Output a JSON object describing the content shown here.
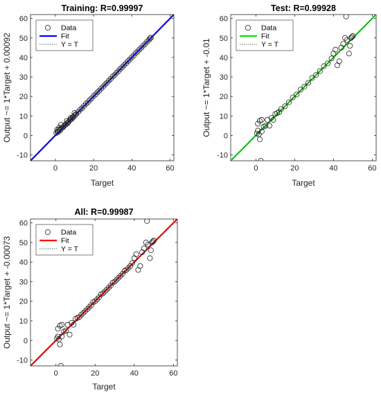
{
  "chart_data": [
    {
      "type": "scatter",
      "title": "Training: R=0.99997",
      "xlabel": "Target",
      "ylabel": "Output ~= 1*Target + 0.00092",
      "xlim": [
        -13,
        62
      ],
      "ylim": [
        -13,
        62
      ],
      "xticks": [
        0,
        20,
        40,
        60
      ],
      "yticks": [
        -10,
        0,
        10,
        20,
        30,
        40,
        50,
        60
      ],
      "fit_color": "#0000ff",
      "legend": [
        "Data",
        "Fit",
        "Y = T"
      ],
      "legend_position": "top-left",
      "grid": false,
      "points": [
        [
          0.5,
          1.2
        ],
        [
          1,
          2
        ],
        [
          1.5,
          1.8
        ],
        [
          2,
          3
        ],
        [
          2.5,
          2.6
        ],
        [
          3,
          3.4
        ],
        [
          3.5,
          4
        ],
        [
          4,
          4.2
        ],
        [
          4.5,
          4.8
        ],
        [
          5,
          5.3
        ],
        [
          5.5,
          5.6
        ],
        [
          6,
          6.2
        ],
        [
          6.5,
          6.4
        ],
        [
          7,
          7.1
        ],
        [
          7.5,
          7.8
        ],
        [
          8,
          8.2
        ],
        [
          8.5,
          8.4
        ],
        [
          9,
          9.3
        ],
        [
          9.5,
          9.4
        ],
        [
          10,
          10.2
        ],
        [
          10.5,
          10.6
        ],
        [
          11,
          11
        ],
        [
          2,
          4
        ],
        [
          3,
          5.5
        ],
        [
          1,
          3
        ],
        [
          8,
          9
        ],
        [
          6,
          7.5
        ],
        [
          10,
          11.5
        ],
        [
          12,
          12.1
        ],
        [
          13,
          13.2
        ],
        [
          14,
          14
        ],
        [
          15,
          15.1
        ],
        [
          16,
          16.2
        ],
        [
          17,
          17
        ],
        [
          18,
          18.1
        ],
        [
          19,
          19
        ],
        [
          20,
          20.2
        ],
        [
          21,
          21
        ],
        [
          22,
          22.1
        ],
        [
          23,
          23
        ],
        [
          24,
          24.1
        ],
        [
          25,
          25
        ],
        [
          26,
          26.1
        ],
        [
          27,
          27
        ],
        [
          28,
          28.1
        ],
        [
          29,
          29
        ],
        [
          30,
          30.2
        ],
        [
          31,
          31
        ],
        [
          32,
          32.1
        ],
        [
          33,
          33
        ],
        [
          34,
          34.1
        ],
        [
          35,
          35
        ],
        [
          36,
          36.1
        ],
        [
          37,
          37
        ],
        [
          38,
          38.1
        ],
        [
          39,
          39
        ],
        [
          40,
          40.1
        ],
        [
          41,
          41
        ],
        [
          42,
          42.2
        ],
        [
          43,
          43
        ],
        [
          44,
          44.1
        ],
        [
          45,
          45
        ],
        [
          46,
          46.1
        ],
        [
          47,
          47
        ],
        [
          48,
          48.1
        ],
        [
          49,
          49
        ],
        [
          49.5,
          49.8
        ],
        [
          50,
          50.1
        ]
      ]
    },
    {
      "type": "scatter",
      "title": "Test: R=0.99928",
      "xlabel": "Target",
      "ylabel": "Output ~= 1*Target + -0.01",
      "xlim": [
        -13,
        62
      ],
      "ylim": [
        -13,
        62
      ],
      "xticks": [
        0,
        20,
        40,
        60
      ],
      "yticks": [
        -10,
        0,
        10,
        20,
        30,
        40,
        50,
        60
      ],
      "fit_color": "#00e600",
      "legend": [
        "Data",
        "Fit",
        "Y = T"
      ],
      "legend_position": "top-left",
      "grid": false,
      "points": [
        [
          0.5,
          1
        ],
        [
          1,
          2.5
        ],
        [
          1.5,
          0.5
        ],
        [
          2,
          -2
        ],
        [
          2,
          7.5
        ],
        [
          2.5,
          -13
        ],
        [
          3,
          8
        ],
        [
          1,
          6
        ],
        [
          3,
          2
        ],
        [
          4,
          4.5
        ],
        [
          5,
          5
        ],
        [
          6,
          8
        ],
        [
          7,
          5
        ],
        [
          8,
          9
        ],
        [
          9,
          8
        ],
        [
          10,
          11
        ],
        [
          11,
          11.5
        ],
        [
          12,
          12
        ],
        [
          13,
          13.5
        ],
        [
          15,
          15
        ],
        [
          17,
          17
        ],
        [
          19,
          19.5
        ],
        [
          21,
          21
        ],
        [
          23,
          23.5
        ],
        [
          25,
          25
        ],
        [
          27,
          27
        ],
        [
          29,
          29.5
        ],
        [
          31,
          31
        ],
        [
          33,
          33
        ],
        [
          35,
          35.5
        ],
        [
          37,
          37
        ],
        [
          39,
          39.5
        ],
        [
          40,
          42
        ],
        [
          41,
          44
        ],
        [
          42,
          36
        ],
        [
          43,
          38
        ],
        [
          44,
          45
        ],
        [
          45,
          47
        ],
        [
          46,
          50
        ],
        [
          46.5,
          61
        ],
        [
          47,
          49
        ],
        [
          48,
          42
        ],
        [
          48.5,
          46
        ],
        [
          49,
          50
        ],
        [
          49.5,
          50.5
        ],
        [
          50,
          51
        ]
      ]
    },
    {
      "type": "scatter",
      "title": "All: R=0.99987",
      "xlabel": "Target",
      "ylabel": "Output ~= 1*Target + -0.00073",
      "xlim": [
        -13,
        62
      ],
      "ylim": [
        -13,
        62
      ],
      "xticks": [
        0,
        20,
        40,
        60
      ],
      "yticks": [
        -10,
        0,
        10,
        20,
        30,
        40,
        50,
        60
      ],
      "fit_color": "#ff0000",
      "legend": [
        "Data",
        "Fit",
        "Y = T"
      ],
      "legend_position": "top-left",
      "grid": false,
      "points": [
        [
          0.5,
          1
        ],
        [
          1,
          2
        ],
        [
          1.5,
          0.5
        ],
        [
          2,
          -2
        ],
        [
          2,
          7.5
        ],
        [
          2.5,
          -13
        ],
        [
          3,
          8
        ],
        [
          1,
          6
        ],
        [
          3,
          2
        ],
        [
          4,
          4.5
        ],
        [
          5,
          5
        ],
        [
          6,
          8
        ],
        [
          7,
          3
        ],
        [
          8,
          9
        ],
        [
          9,
          8
        ],
        [
          10,
          11
        ],
        [
          11,
          11.5
        ],
        [
          12,
          12
        ],
        [
          13,
          13.2
        ],
        [
          14,
          14
        ],
        [
          15,
          15
        ],
        [
          16,
          16
        ],
        [
          17,
          17
        ],
        [
          18,
          18
        ],
        [
          19,
          19.5
        ],
        [
          20,
          20
        ],
        [
          21,
          21
        ],
        [
          22,
          22
        ],
        [
          23,
          23.5
        ],
        [
          24,
          24
        ],
        [
          25,
          25
        ],
        [
          26,
          26
        ],
        [
          27,
          27
        ],
        [
          28,
          28
        ],
        [
          29,
          29.5
        ],
        [
          30,
          30
        ],
        [
          31,
          31
        ],
        [
          32,
          32
        ],
        [
          33,
          33
        ],
        [
          34,
          34
        ],
        [
          35,
          35.5
        ],
        [
          36,
          36
        ],
        [
          37,
          37
        ],
        [
          38,
          38
        ],
        [
          39,
          39.5
        ],
        [
          40,
          42
        ],
        [
          41,
          44
        ],
        [
          42,
          36
        ],
        [
          43,
          38
        ],
        [
          44,
          45
        ],
        [
          45,
          47
        ],
        [
          46,
          50
        ],
        [
          46.5,
          61
        ],
        [
          47,
          49
        ],
        [
          48,
          42
        ],
        [
          48.5,
          46
        ],
        [
          49,
          50
        ],
        [
          49.5,
          50.5
        ],
        [
          50,
          51
        ]
      ]
    }
  ]
}
